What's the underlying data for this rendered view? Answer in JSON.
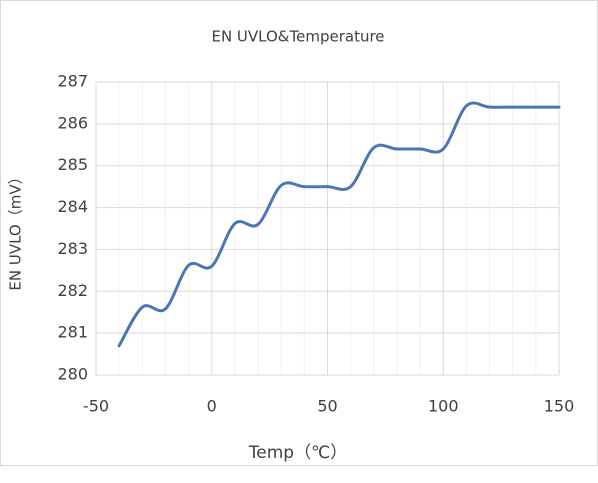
{
  "chart_data": {
    "type": "line",
    "title": "EN UVLO&Temperature",
    "xlabel": "Temp（℃）",
    "ylabel": "EN UVLO（mV）",
    "x": [
      -40,
      -30,
      -20,
      -10,
      0,
      10,
      20,
      30,
      40,
      50,
      60,
      70,
      80,
      90,
      100,
      110,
      120,
      130,
      140,
      150
    ],
    "values": [
      280.7,
      281.62,
      281.58,
      282.62,
      282.6,
      283.62,
      283.6,
      284.53,
      284.5,
      284.5,
      284.5,
      285.43,
      285.4,
      285.4,
      285.4,
      286.43,
      286.4,
      286.4,
      286.4,
      286.4
    ],
    "color": "#4a76b8",
    "xlim": [
      -50,
      150
    ],
    "xticks": [
      -50,
      0,
      50,
      100,
      150
    ],
    "xminorticks": [
      -40,
      -30,
      -20,
      -10,
      10,
      20,
      30,
      40,
      60,
      70,
      80,
      90,
      110,
      120,
      130,
      140
    ],
    "ylim": [
      280,
      287
    ],
    "yticks": [
      280,
      281,
      282,
      283,
      284,
      285,
      286,
      287
    ],
    "grid": true
  }
}
